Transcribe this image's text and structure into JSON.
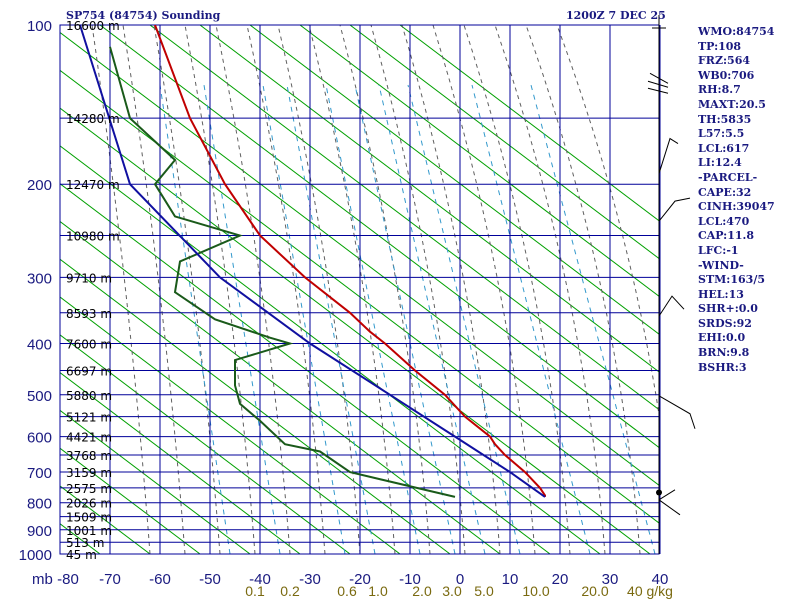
{
  "chart_data": {
    "type": "line",
    "title": "SP754 (84754) Sounding",
    "datetime": "1200Z  7 DEC 25",
    "y_axis": {
      "pressure_ticks_mb": [
        100,
        200,
        300,
        400,
        500,
        600,
        700,
        800,
        900,
        1000
      ],
      "pressure_lines_mb": [
        100,
        150,
        200,
        250,
        300,
        350,
        400,
        450,
        500,
        550,
        600,
        650,
        700,
        750,
        800,
        850,
        900,
        950,
        1000
      ],
      "height_labels": [
        {
          "p": 100,
          "label": "16600 m"
        },
        {
          "p": 150,
          "label": "14280 m"
        },
        {
          "p": 200,
          "label": "12470 m"
        },
        {
          "p": 250,
          "label": "10980 m"
        },
        {
          "p": 300,
          "label": "9710 m"
        },
        {
          "p": 350,
          "label": "8593 m"
        },
        {
          "p": 400,
          "label": "7600 m"
        },
        {
          "p": 450,
          "label": "6697 m"
        },
        {
          "p": 500,
          "label": "5880 m"
        },
        {
          "p": 550,
          "label": "5121 m"
        },
        {
          "p": 600,
          "label": "4421 m"
        },
        {
          "p": 650,
          "label": "3768 m"
        },
        {
          "p": 700,
          "label": "3159 m"
        },
        {
          "p": 750,
          "label": "2575 m"
        },
        {
          "p": 800,
          "label": "2026 m"
        },
        {
          "p": 850,
          "label": "1509 m"
        },
        {
          "p": 900,
          "label": "1001 m"
        },
        {
          "p": 950,
          "label": "513 m"
        },
        {
          "p": 1000,
          "label": "45 m"
        }
      ]
    },
    "x_axis": {
      "unit_label": "mb",
      "temp_ticks": [
        -80,
        -70,
        -60,
        -50,
        -40,
        -30,
        -20,
        -10,
        0,
        10,
        20,
        30,
        40
      ],
      "temp_lines": [
        -80,
        -70,
        -60,
        -50,
        -40,
        -30,
        -20,
        -10,
        0,
        10,
        20,
        30,
        40
      ],
      "mixing_ratio_labels": [
        "0.1",
        "0.2",
        "0.6",
        "1.0",
        "2.0",
        "3.0",
        "5.0",
        "10.0",
        "20.0",
        "40 g/kg"
      ]
    },
    "series": [
      {
        "role": "temperature",
        "color": "#c00000",
        "points": [
          [
            100,
            -61
          ],
          [
            150,
            -54
          ],
          [
            200,
            -47
          ],
          [
            250,
            -40
          ],
          [
            300,
            -31
          ],
          [
            350,
            -22
          ],
          [
            380,
            -18
          ],
          [
            400,
            -15
          ],
          [
            450,
            -9
          ],
          [
            500,
            -3
          ],
          [
            550,
            1
          ],
          [
            600,
            6
          ],
          [
            620,
            7
          ],
          [
            650,
            9
          ],
          [
            700,
            13
          ],
          [
            750,
            16
          ],
          [
            775,
            17
          ],
          [
            780,
            17
          ]
        ]
      },
      {
        "role": "dewpoint",
        "color": "#1a5a1a",
        "points": [
          [
            110,
            -70
          ],
          [
            150,
            -66
          ],
          [
            180,
            -57
          ],
          [
            200,
            -61
          ],
          [
            230,
            -57
          ],
          [
            250,
            -44
          ],
          [
            280,
            -56
          ],
          [
            320,
            -57
          ],
          [
            360,
            -49
          ],
          [
            390,
            -38
          ],
          [
            400,
            -34
          ],
          [
            430,
            -45
          ],
          [
            480,
            -45
          ],
          [
            520,
            -44
          ],
          [
            560,
            -40
          ],
          [
            620,
            -35
          ],
          [
            640,
            -28
          ],
          [
            700,
            -22
          ],
          [
            760,
            -6
          ],
          [
            780,
            -1
          ]
        ]
      },
      {
        "role": "parcel",
        "color": "#1010a0",
        "points": [
          [
            100,
            -76
          ],
          [
            200,
            -66
          ],
          [
            300,
            -48
          ],
          [
            400,
            -30
          ],
          [
            500,
            -14
          ],
          [
            600,
            -1
          ],
          [
            700,
            10
          ],
          [
            780,
            17
          ]
        ]
      }
    ],
    "stats": [
      "WMO:84754",
      "TP:108",
      "FRZ:564",
      "WB0:706",
      "RH:8.7",
      "MAXT:20.5",
      "TH:5835",
      "L57:5.5",
      "LCL:617",
      "LI:12.4",
      "-PARCEL-",
      "CAPE:32",
      "CINH:39047",
      "LCL:470",
      "CAP:11.8",
      "LFC:-1",
      "-WIND-",
      "STM:163/5",
      "HEL:13",
      "SHR+:0.0",
      "SRDS:92",
      "EHI:0.0",
      "BRN:9.8",
      "BSHR:3"
    ],
    "colors": {
      "frame": "#000099",
      "dry_adiabat": "#00a000",
      "moist_adiabat": "#606060",
      "mixing_ratio": "#3399cc",
      "axis_text": "#1a1a80",
      "mixing_text": "#7a6a10"
    }
  }
}
